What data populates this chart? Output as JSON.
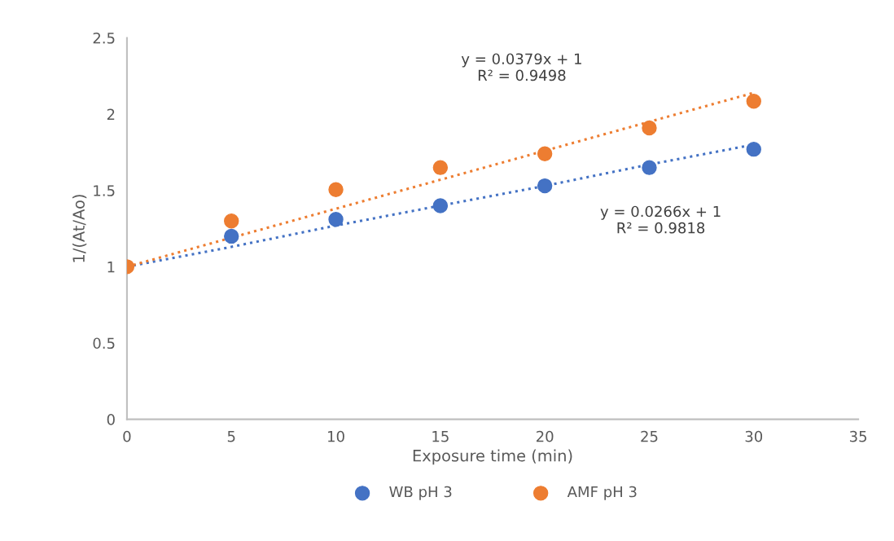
{
  "chart_data": {
    "type": "scatter",
    "xlabel": "Exposure time (min)",
    "ylabel": "1/(At/Ao)",
    "x": [
      0,
      5,
      10,
      15,
      20,
      25,
      30
    ],
    "series": [
      {
        "name": "WB pH 3",
        "color": "#4472c4",
        "marker": "circle",
        "values": [
          null,
          1.2,
          1.31,
          1.4,
          1.53,
          1.65,
          1.77
        ]
      },
      {
        "name": "AMF pH 3",
        "color": "#ed7d31",
        "marker": "circle",
        "values": [
          1,
          1.3,
          1.505,
          1.65,
          1.74,
          1.91,
          2.085
        ]
      },
      {
        "type": "line",
        "color": "#4472c4",
        "line_style": "dotted",
        "marker": "none",
        "values": [
          1,
          1.13,
          1.27,
          1.4,
          1.53,
          1.67,
          1.8
        ]
      },
      {
        "type": "line",
        "color": "#ed7d31",
        "line_style": "dotted",
        "marker": "none",
        "values": [
          1,
          1.19,
          1.38,
          1.57,
          1.76,
          1.95,
          2.14
        ]
      }
    ],
    "annotations": [
      "y = 0.0379x + 1\nR² = 0.9498",
      "y = 0.0266x + 1\nR² = 0.9818"
    ],
    "xlim": [
      0,
      35
    ],
    "xticks": [
      0,
      5,
      10,
      15,
      20,
      25,
      30,
      35
    ],
    "ylim": [
      0,
      2.5
    ],
    "yticks": [
      0,
      0.5,
      1,
      1.5,
      2,
      2.5
    ],
    "grid": false,
    "legend": "bottom"
  }
}
